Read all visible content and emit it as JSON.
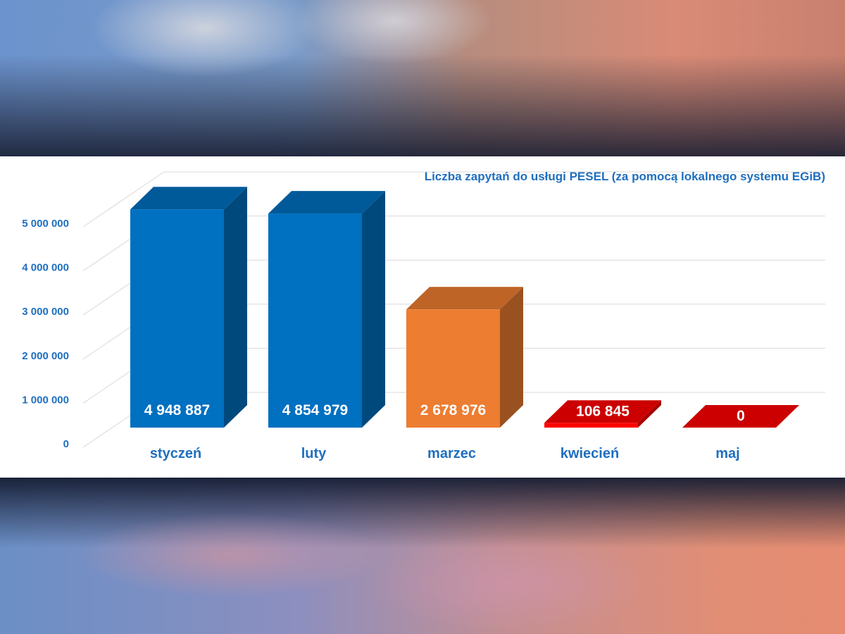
{
  "chart_data": {
    "type": "bar",
    "title": "Liczba zapytań do usługi PESEL (za pomocą lokalnego systemu EGiB)",
    "categories": [
      "styczeń",
      "luty",
      "marzec",
      "kwiecień",
      "maj"
    ],
    "values": [
      4948887,
      4854979,
      2678976,
      106845,
      0
    ],
    "value_labels": [
      "4 948 887",
      "4 854 979",
      "2 678 976",
      "106 845",
      "0"
    ],
    "bar_colors": [
      "#0070c0",
      "#0070c0",
      "#ed7d31",
      "#ff0000",
      "#ff0000"
    ],
    "y_ticks": [
      0,
      1000000,
      2000000,
      3000000,
      4000000,
      5000000
    ],
    "y_tick_labels": [
      "0",
      "1 000 000",
      "2 000 000",
      "3 000 000",
      "4 000 000",
      "5 000 000"
    ],
    "ylim": [
      0,
      5000000
    ],
    "grid": true,
    "style": "3d-column",
    "xlabel": "",
    "ylabel": ""
  },
  "colors": {
    "label_blue": "#1f6fbf",
    "grid": "#d9d9d9"
  }
}
